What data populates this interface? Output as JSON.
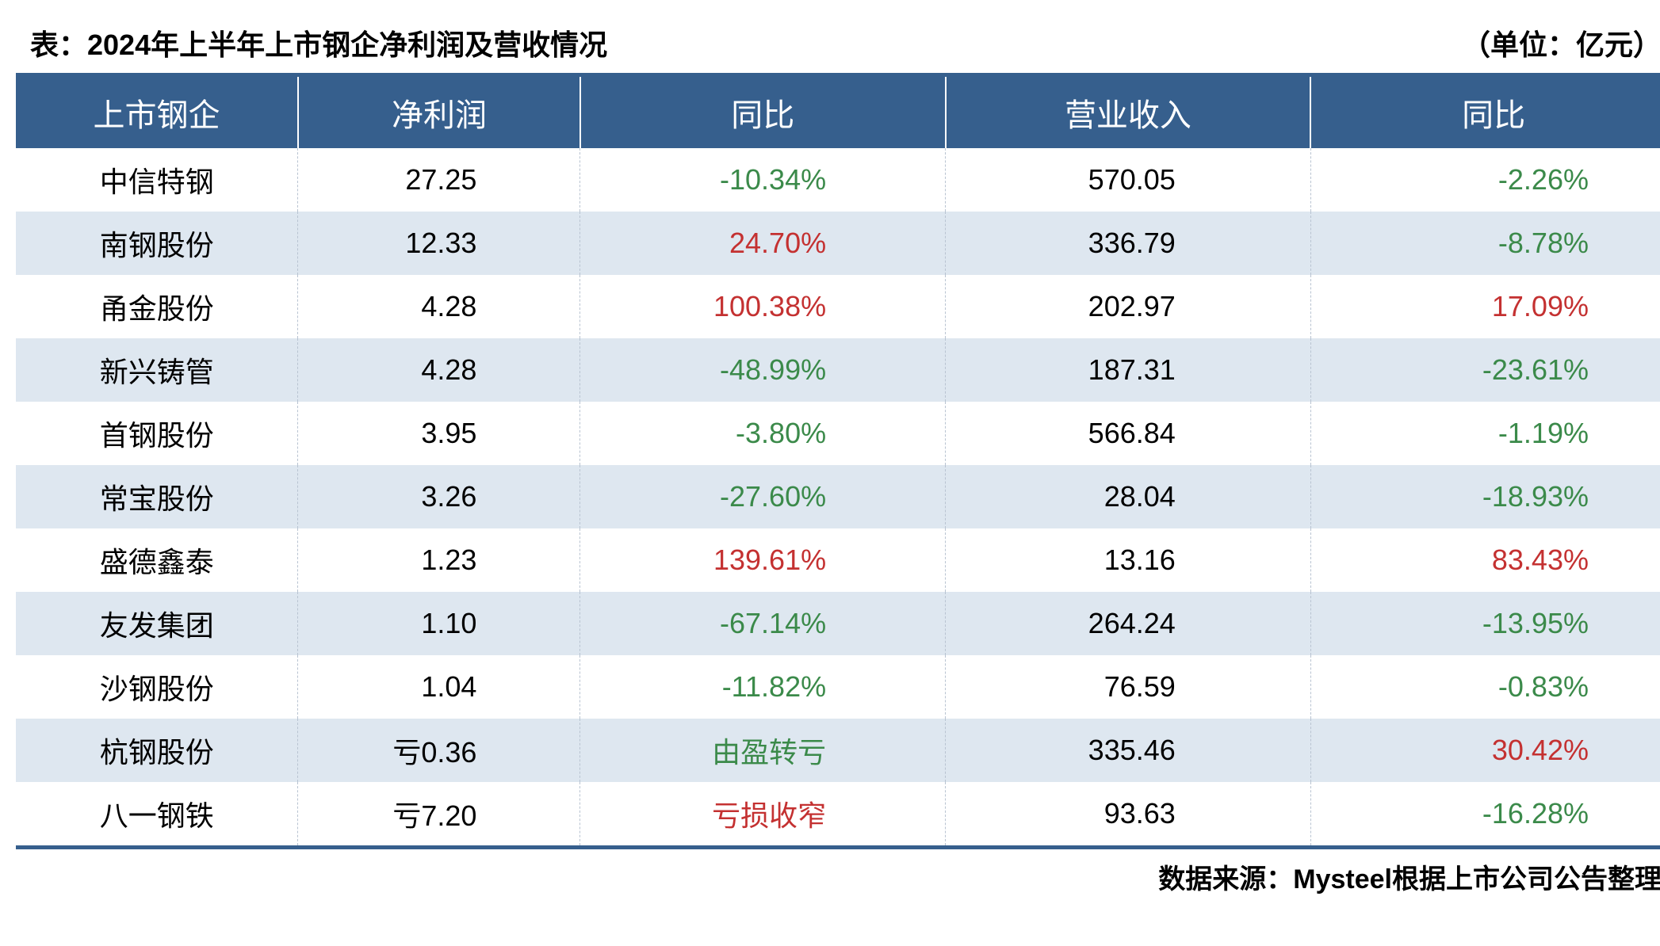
{
  "title": "表：2024年上半年上市钢企净利润及营收情况",
  "unit": "（单位：亿元）",
  "source": "数据来源：Mysteel根据上市公司公告整理",
  "colors": {
    "header_bg": "#365f8d",
    "header_text": "#ffffff",
    "row_even_bg": "#dee7f0",
    "row_odd_bg": "#ffffff",
    "positive": "#c43131",
    "negative": "#3b8a4a",
    "border_dash": "#b8c3d1",
    "text": "#000000"
  },
  "typography": {
    "title_fontsize": 36,
    "title_weight": 700,
    "header_fontsize": 40,
    "cell_fontsize": 36,
    "source_fontsize": 34
  },
  "table": {
    "type": "table",
    "columns": [
      "上市钢企",
      "净利润",
      "同比",
      "营业收入",
      "同比"
    ],
    "column_alignments": [
      "center",
      "right",
      "right",
      "right",
      "right"
    ],
    "rows": [
      {
        "name": "中信特钢",
        "profit": "27.25",
        "profit_yoy": "-10.34%",
        "profit_yoy_dir": "neg",
        "revenue": "570.05",
        "revenue_yoy": "-2.26%",
        "revenue_yoy_dir": "neg"
      },
      {
        "name": "南钢股份",
        "profit": "12.33",
        "profit_yoy": "24.70%",
        "profit_yoy_dir": "pos",
        "revenue": "336.79",
        "revenue_yoy": "-8.78%",
        "revenue_yoy_dir": "neg"
      },
      {
        "name": "甬金股份",
        "profit": "4.28",
        "profit_yoy": "100.38%",
        "profit_yoy_dir": "pos",
        "revenue": "202.97",
        "revenue_yoy": "17.09%",
        "revenue_yoy_dir": "pos"
      },
      {
        "name": "新兴铸管",
        "profit": "4.28",
        "profit_yoy": "-48.99%",
        "profit_yoy_dir": "neg",
        "revenue": "187.31",
        "revenue_yoy": "-23.61%",
        "revenue_yoy_dir": "neg"
      },
      {
        "name": "首钢股份",
        "profit": "3.95",
        "profit_yoy": "-3.80%",
        "profit_yoy_dir": "neg",
        "revenue": "566.84",
        "revenue_yoy": "-1.19%",
        "revenue_yoy_dir": "neg"
      },
      {
        "name": "常宝股份",
        "profit": "3.26",
        "profit_yoy": "-27.60%",
        "profit_yoy_dir": "neg",
        "revenue": "28.04",
        "revenue_yoy": "-18.93%",
        "revenue_yoy_dir": "neg"
      },
      {
        "name": "盛德鑫泰",
        "profit": "1.23",
        "profit_yoy": "139.61%",
        "profit_yoy_dir": "pos",
        "revenue": "13.16",
        "revenue_yoy": "83.43%",
        "revenue_yoy_dir": "pos"
      },
      {
        "name": "友发集团",
        "profit": "1.10",
        "profit_yoy": "-67.14%",
        "profit_yoy_dir": "neg",
        "revenue": "264.24",
        "revenue_yoy": "-13.95%",
        "revenue_yoy_dir": "neg"
      },
      {
        "name": "沙钢股份",
        "profit": "1.04",
        "profit_yoy": "-11.82%",
        "profit_yoy_dir": "neg",
        "revenue": "76.59",
        "revenue_yoy": "-0.83%",
        "revenue_yoy_dir": "neg"
      },
      {
        "name": "杭钢股份",
        "profit": "亏0.36",
        "profit_yoy": "由盈转亏",
        "profit_yoy_dir": "neg",
        "revenue": "335.46",
        "revenue_yoy": "30.42%",
        "revenue_yoy_dir": "pos"
      },
      {
        "name": "八一钢铁",
        "profit": "亏7.20",
        "profit_yoy": "亏损收窄",
        "profit_yoy_dir": "pos",
        "revenue": "93.63",
        "revenue_yoy": "-16.28%",
        "revenue_yoy_dir": "neg"
      }
    ]
  }
}
